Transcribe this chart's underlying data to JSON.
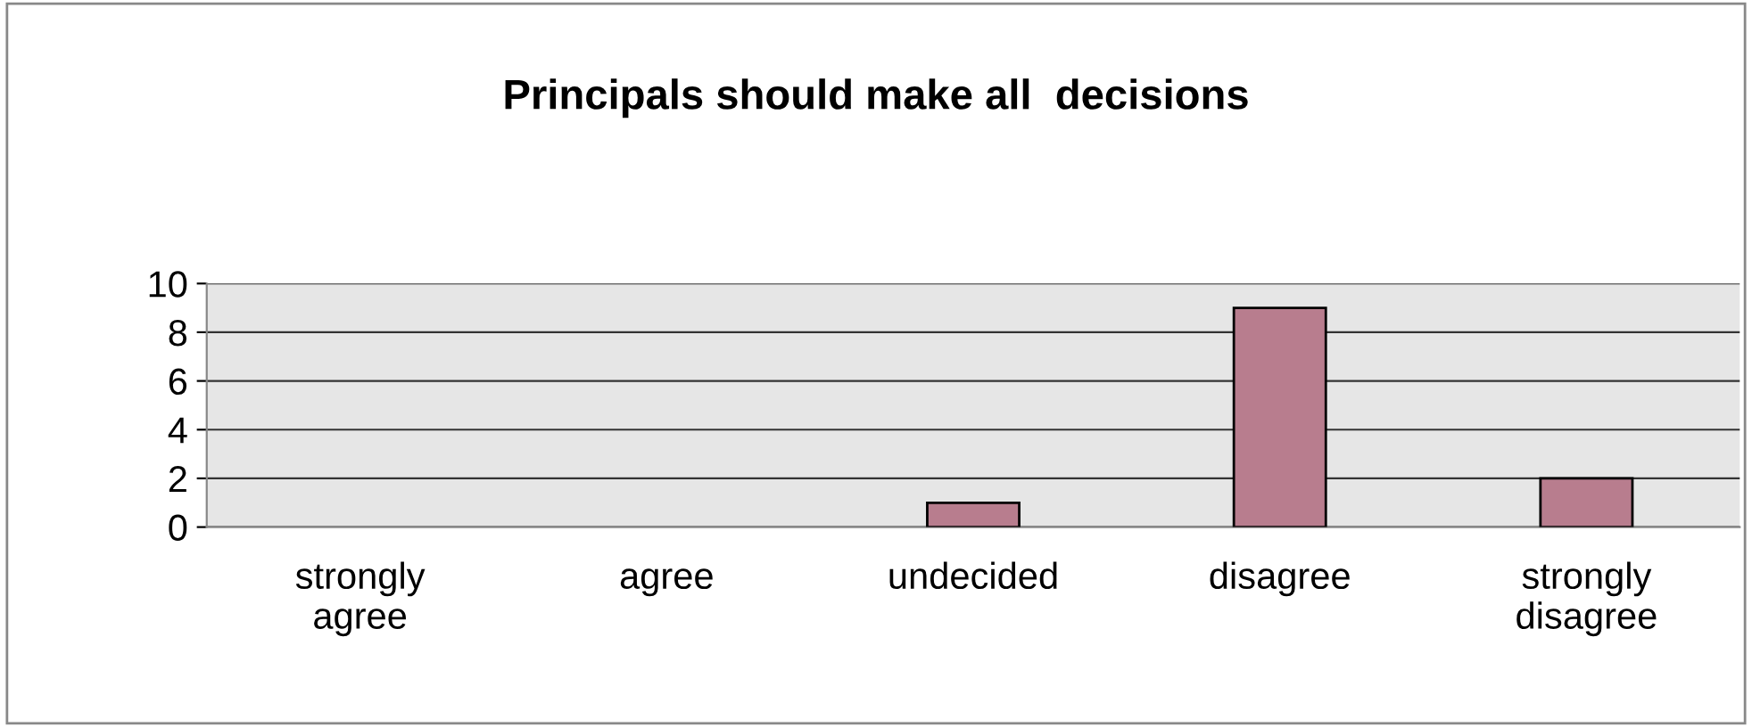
{
  "chart_data": {
    "type": "bar",
    "title": "Principals should make all  decisions",
    "categories": [
      "strongly\nagree",
      "agree",
      "undecided",
      "disagree",
      "strongly\ndisagree"
    ],
    "values": [
      0,
      0,
      1,
      9,
      2
    ],
    "color": "#b87d8e",
    "ylim": [
      0,
      10
    ],
    "yticks": [
      0,
      2,
      4,
      6,
      8,
      10
    ],
    "grid": "y"
  }
}
